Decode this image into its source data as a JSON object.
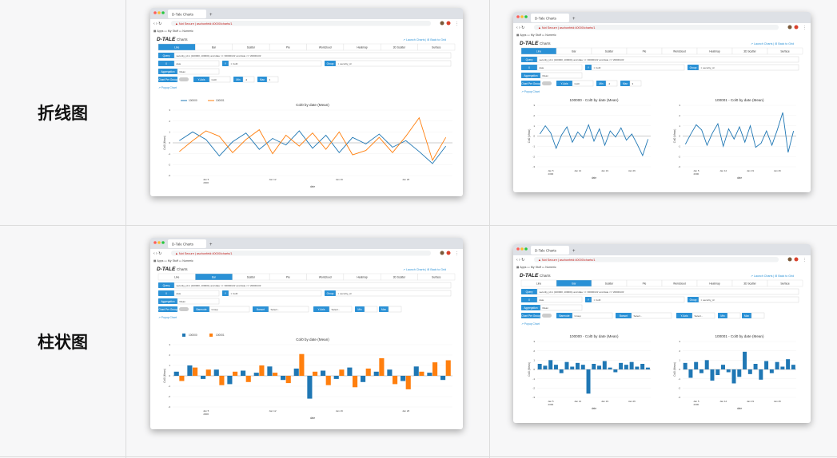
{
  "rows": [
    {
      "label": "折线图",
      "chart_type": "line"
    },
    {
      "label": "柱状图",
      "chart_type": "bar"
    }
  ],
  "app": {
    "tab_title": "D-Tale Charts",
    "not_secure": "Not Secure",
    "url": "aschonfeld:40000/charts/1",
    "bookmarks": [
      "Apps",
      "My Stuff",
      "Numeric"
    ],
    "logo": "D-TALE",
    "page_title": "Charts",
    "links": [
      "Launch Charts",
      "Back to Grid"
    ],
    "chart_tabs": [
      "Line",
      "Bar",
      "Scatter",
      "Pie",
      "Wordcloud",
      "Heatmap",
      "3D Scatter",
      "Surface"
    ],
    "query_label": "Query",
    "query_value": "security_id in (100000, 100001) and date >= '20000101' and date <= '20000131'",
    "x_label": "X",
    "x_value": "date",
    "y_label": "Y",
    "y_value": "Col0",
    "group_label": "Group",
    "group_value": "security_id",
    "aggregation_label": "Aggregation",
    "aggregation_value": "Mean",
    "chart_per_group_label": "Chart Per Group",
    "y_axis_label": "Y-Axis",
    "y_axis_value": "Col0",
    "min_label": "Min",
    "min_value": "-3",
    "max_label": "Max",
    "max_value": "3",
    "barmode_label": "Barmode",
    "barmode_value": "Group",
    "barsort_label": "Barsort",
    "select_placeholder": "Select...",
    "popup_chart": "Popup Chart",
    "date_ticks": [
      "Jan 5\n2000",
      "Jan 12",
      "Jan 19",
      "Jan 26"
    ]
  },
  "colors": {
    "series_a": "#1f77b4",
    "series_b": "#ff7f0e",
    "accent": "#2a91d6"
  },
  "chart_data": [
    {
      "type": "line",
      "title": "Col0 by date (Mean)",
      "xlabel": "date",
      "ylabel": "Col0 (Mean)",
      "legend": [
        "100000",
        "100001"
      ],
      "ylim": [
        -3,
        3
      ],
      "x": [
        "Jan 3",
        "Jan 4",
        "Jan 5",
        "Jan 6",
        "Jan 7",
        "Jan 10",
        "Jan 11",
        "Jan 12",
        "Jan 13",
        "Jan 14",
        "Jan 17",
        "Jan 18",
        "Jan 19",
        "Jan 20",
        "Jan 21",
        "Jan 24",
        "Jan 25",
        "Jan 26",
        "Jan 27",
        "Jan 28",
        "Jan 31"
      ],
      "series": [
        {
          "name": "100000",
          "values": [
            0.2,
            1.0,
            0.3,
            -1.2,
            0.1,
            0.9,
            -0.6,
            0.4,
            -0.2,
            1.1,
            -0.5,
            0.7,
            -0.9,
            0.5,
            -0.1,
            0.8,
            -0.4,
            0.2,
            -0.8,
            -1.9,
            -0.3
          ]
        },
        {
          "name": "100001",
          "values": [
            -0.8,
            0.2,
            1.1,
            0.6,
            -0.9,
            0.3,
            1.2,
            -1.0,
            0.7,
            -0.3,
            0.9,
            -0.6,
            1.0,
            -1.1,
            -0.7,
            0.5,
            -0.9,
            0.6,
            2.3,
            -1.6,
            0.5
          ]
        }
      ]
    },
    {
      "type": "line",
      "title": "100000 - Col0 by date (Mean)",
      "xlabel": "date",
      "ylabel": "Col0 (Mean)",
      "ylim": [
        -3,
        3
      ],
      "series": [
        {
          "name": "100000",
          "values": [
            0.2,
            1.0,
            0.3,
            -1.2,
            0.1,
            0.9,
            -0.6,
            0.4,
            -0.2,
            1.1,
            -0.5,
            0.7,
            -0.9,
            0.5,
            -0.1,
            0.8,
            -0.4,
            0.2,
            -0.8,
            -1.9,
            -0.3
          ]
        }
      ]
    },
    {
      "type": "line",
      "title": "100001 - Col0 by date (Mean)",
      "xlabel": "date",
      "ylabel": "Col0 (Mean)",
      "ylim": [
        -3,
        3
      ],
      "series": [
        {
          "name": "100001",
          "values": [
            -0.8,
            0.2,
            1.1,
            0.6,
            -0.9,
            0.3,
            1.2,
            -1.0,
            0.7,
            -0.3,
            0.9,
            -0.6,
            1.0,
            -1.1,
            -0.7,
            0.5,
            -0.9,
            0.6,
            2.3,
            -1.6,
            0.5
          ]
        }
      ]
    },
    {
      "type": "bar",
      "title": "Col0 by date (Mean)",
      "xlabel": "date",
      "ylabel": "Col0 (Mean)",
      "legend": [
        "100000",
        "100001"
      ],
      "ylim": [
        -3,
        3
      ],
      "series": [
        {
          "name": "100000",
          "values": [
            0.4,
            1.0,
            -0.3,
            0.6,
            -0.8,
            0.5,
            0.3,
            0.9,
            -0.4,
            0.7,
            -2.2,
            0.5,
            -0.3,
            0.8,
            -0.6,
            0.4,
            0.6,
            -0.5,
            0.9,
            0.3,
            -0.4
          ]
        },
        {
          "name": "100001",
          "values": [
            -0.5,
            0.8,
            0.6,
            -0.9,
            0.4,
            -0.6,
            1.0,
            0.3,
            -0.7,
            2.1,
            0.4,
            -0.9,
            0.6,
            -1.1,
            0.7,
            1.7,
            -0.8,
            -1.3,
            0.4,
            1.3,
            1.5
          ]
        }
      ]
    },
    {
      "type": "bar",
      "title": "100000 - Col0 by date (Mean)",
      "xlabel": "date",
      "ylabel": "Col0 (Mean)",
      "ylim": [
        -3,
        3
      ],
      "series": [
        {
          "name": "100000",
          "values": [
            0.6,
            0.4,
            1.0,
            0.5,
            -0.4,
            0.8,
            0.3,
            0.7,
            0.5,
            -2.6,
            0.6,
            0.4,
            0.9,
            0.2,
            -0.3,
            0.7,
            0.5,
            0.8,
            0.3,
            0.6,
            0.2
          ]
        }
      ]
    },
    {
      "type": "bar",
      "title": "100001 - Col0 by date (Mean)",
      "xlabel": "date",
      "ylabel": "Col0 (Mean)",
      "ylim": [
        -3,
        3
      ],
      "series": [
        {
          "name": "100001",
          "values": [
            0.7,
            -0.9,
            0.8,
            -0.4,
            1.0,
            -1.2,
            -0.6,
            0.5,
            -0.3,
            -1.5,
            -0.8,
            1.9,
            -0.5,
            0.6,
            -1.1,
            0.9,
            -0.4,
            0.8,
            0.3,
            1.1,
            0.5
          ]
        }
      ]
    }
  ]
}
